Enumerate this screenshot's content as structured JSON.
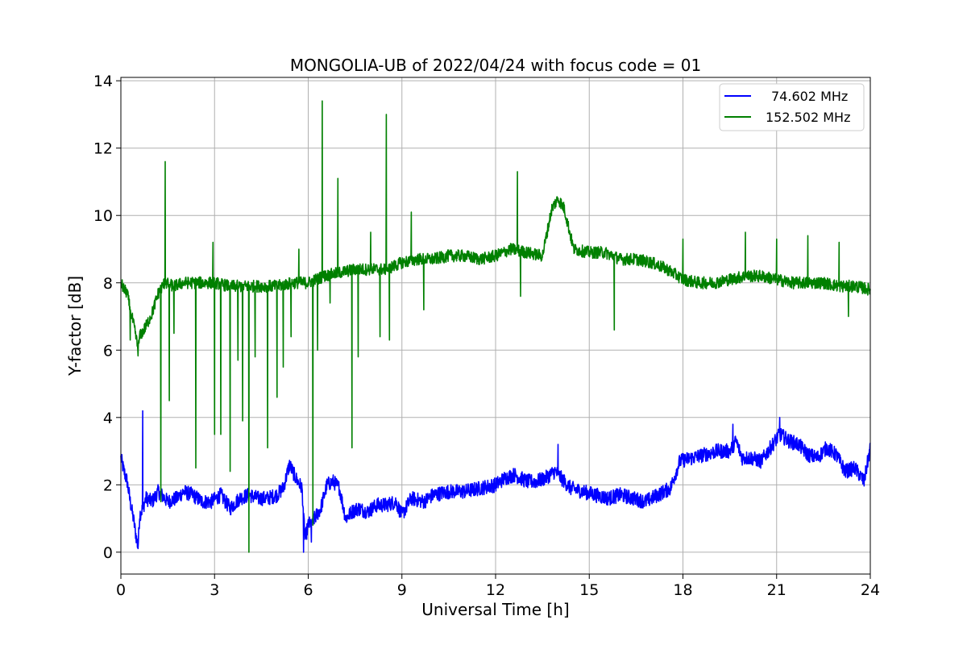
{
  "chart_data": {
    "type": "line",
    "title": "MONGOLIA-UB of 2022/04/24 with focus code = 01",
    "xlabel": "Universal Time [h]",
    "ylabel": "Y-factor [dB]",
    "xlim": [
      0,
      24
    ],
    "ylim": [
      -0.65,
      14.1
    ],
    "xticks": [
      0,
      3,
      6,
      9,
      12,
      15,
      18,
      21,
      24
    ],
    "yticks": [
      0,
      2,
      4,
      6,
      8,
      10,
      12,
      14
    ],
    "grid": true,
    "legend_position": "top-right",
    "series": [
      {
        "name": "74.602 MHz",
        "color": "#0000ff",
        "x": [
          0,
          0.1,
          0.2,
          0.3,
          0.4,
          0.5,
          0.55,
          0.6,
          0.7,
          0.8,
          1.0,
          1.2,
          1.5,
          1.8,
          2.0,
          2.3,
          2.6,
          2.9,
          3.2,
          3.5,
          3.8,
          4.1,
          4.4,
          4.7,
          5.0,
          5.2,
          5.4,
          5.6,
          5.8,
          5.9,
          6.0,
          6.2,
          6.4,
          6.6,
          6.8,
          7.0,
          7.2,
          7.4,
          7.6,
          7.9,
          8.2,
          8.5,
          8.8,
          9.0,
          9.3,
          9.7,
          10.0,
          10.5,
          11.0,
          11.5,
          12.0,
          12.3,
          12.6,
          13.0,
          13.3,
          13.6,
          13.9,
          14.1,
          14.4,
          14.8,
          15.2,
          15.6,
          16.0,
          16.4,
          16.8,
          17.2,
          17.6,
          17.9,
          18.3,
          18.7,
          19.1,
          19.5,
          19.7,
          19.9,
          20.2,
          20.5,
          20.8,
          21.1,
          21.4,
          21.7,
          22.0,
          22.3,
          22.6,
          22.9,
          23.2,
          23.5,
          23.8,
          24.0
        ],
        "values": [
          2.8,
          2.4,
          2.1,
          1.5,
          1.0,
          0.4,
          0.15,
          1.1,
          1.3,
          1.6,
          1.5,
          1.8,
          1.5,
          1.6,
          1.8,
          1.7,
          1.5,
          1.5,
          1.7,
          1.3,
          1.6,
          1.7,
          1.6,
          1.6,
          1.7,
          1.9,
          2.6,
          2.2,
          1.9,
          0.4,
          0.8,
          1.0,
          1.3,
          2.0,
          2.1,
          1.9,
          1.0,
          1.2,
          1.3,
          1.2,
          1.4,
          1.4,
          1.5,
          1.1,
          1.6,
          1.5,
          1.7,
          1.8,
          1.8,
          1.9,
          2.0,
          2.2,
          2.3,
          2.1,
          2.1,
          2.2,
          2.4,
          2.2,
          1.9,
          1.8,
          1.7,
          1.6,
          1.7,
          1.6,
          1.5,
          1.7,
          1.9,
          2.7,
          2.8,
          2.9,
          3.0,
          3.0,
          3.3,
          2.8,
          2.8,
          2.7,
          3.1,
          3.5,
          3.3,
          3.2,
          2.9,
          2.8,
          3.1,
          2.9,
          2.4,
          2.5,
          2.1,
          3.1
        ]
      },
      {
        "name": "152.502 MHz",
        "color": "#008000",
        "x": [
          0,
          0.1,
          0.2,
          0.3,
          0.4,
          0.5,
          0.55,
          0.6,
          0.8,
          1.0,
          1.2,
          1.4,
          1.7,
          2.0,
          2.5,
          3.0,
          3.5,
          4.0,
          4.5,
          5.0,
          5.5,
          6.0,
          6.5,
          7.0,
          7.5,
          8.0,
          8.5,
          9.0,
          9.5,
          10.0,
          10.5,
          11.0,
          11.5,
          12.0,
          12.5,
          13.0,
          13.5,
          13.8,
          14.0,
          14.2,
          14.5,
          15.0,
          15.5,
          16.0,
          16.5,
          17.0,
          17.5,
          18.0,
          18.5,
          19.0,
          19.5,
          20.0,
          20.5,
          21.0,
          21.5,
          22.0,
          22.5,
          23.0,
          23.5,
          24.0
        ],
        "values": [
          8.0,
          7.8,
          7.7,
          7.2,
          6.8,
          6.3,
          6.0,
          6.4,
          6.7,
          7.1,
          7.7,
          8.0,
          7.9,
          8.0,
          8.0,
          8.0,
          7.9,
          7.9,
          7.9,
          7.9,
          8.0,
          8.0,
          8.2,
          8.3,
          8.4,
          8.4,
          8.4,
          8.6,
          8.7,
          8.7,
          8.8,
          8.8,
          8.7,
          8.8,
          9.0,
          8.9,
          8.8,
          10.2,
          10.5,
          10.2,
          9.0,
          8.9,
          8.9,
          8.7,
          8.7,
          8.6,
          8.4,
          8.1,
          8.0,
          8.0,
          8.1,
          8.2,
          8.2,
          8.1,
          8.0,
          8.0,
          8.0,
          7.9,
          7.9,
          7.8
        ]
      }
    ],
    "spikes": [
      {
        "series": 1,
        "points": [
          [
            0.3,
            6.3
          ],
          [
            1.28,
            1.5
          ],
          [
            1.42,
            11.6
          ],
          [
            1.55,
            4.5
          ],
          [
            1.7,
            6.5
          ],
          [
            2.4,
            2.5
          ],
          [
            2.95,
            9.2
          ],
          [
            3.0,
            3.5
          ],
          [
            3.2,
            3.5
          ],
          [
            3.5,
            2.4
          ],
          [
            3.75,
            5.7
          ],
          [
            3.9,
            3.9
          ],
          [
            4.1,
            0.0
          ],
          [
            4.3,
            5.8
          ],
          [
            4.7,
            3.1
          ],
          [
            5.0,
            4.6
          ],
          [
            5.2,
            5.5
          ],
          [
            5.45,
            6.4
          ],
          [
            5.7,
            9.0
          ],
          [
            6.15,
            0.8
          ],
          [
            6.3,
            6.0
          ],
          [
            6.45,
            13.4
          ],
          [
            6.7,
            7.4
          ],
          [
            6.95,
            11.1
          ],
          [
            7.4,
            3.1
          ],
          [
            7.6,
            5.8
          ],
          [
            8.0,
            9.5
          ],
          [
            8.3,
            6.4
          ],
          [
            8.5,
            13.0
          ],
          [
            8.6,
            6.3
          ],
          [
            9.3,
            10.1
          ],
          [
            9.7,
            7.2
          ],
          [
            12.7,
            11.3
          ],
          [
            12.8,
            7.6
          ],
          [
            15.8,
            6.6
          ],
          [
            18.0,
            9.3
          ],
          [
            20.0,
            9.5
          ],
          [
            21.0,
            9.3
          ],
          [
            22.0,
            9.4
          ],
          [
            23.0,
            9.2
          ],
          [
            23.3,
            7.0
          ]
        ]
      },
      {
        "series": 0,
        "points": [
          [
            0.7,
            4.2
          ],
          [
            5.85,
            0.0
          ],
          [
            6.1,
            0.3
          ],
          [
            14.0,
            3.2
          ],
          [
            19.6,
            3.8
          ],
          [
            21.1,
            4.0
          ]
        ]
      }
    ]
  }
}
